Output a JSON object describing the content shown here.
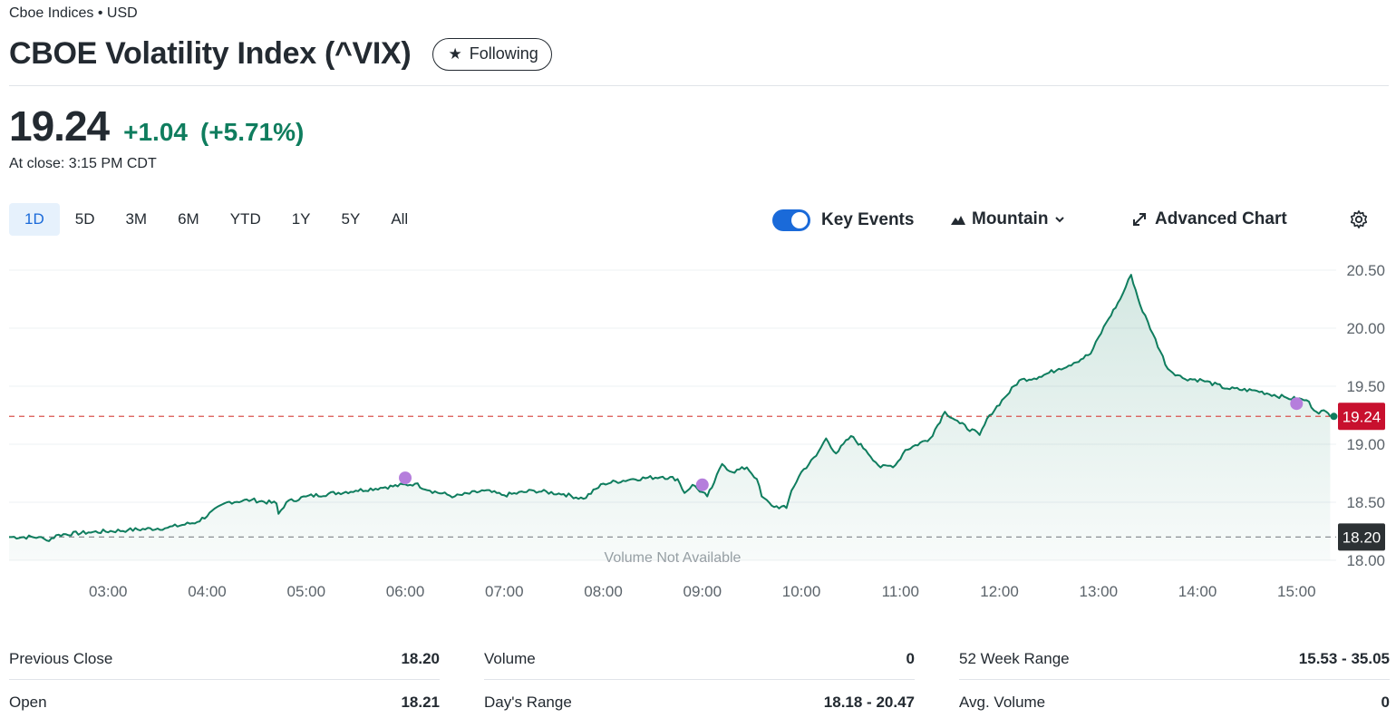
{
  "header": {
    "exchange": "Cboe Indices • USD",
    "title": "CBOE Volatility Index (^VIX)",
    "follow_label": "Following"
  },
  "quote": {
    "price": "19.24",
    "change": "+1.04",
    "change_pct": "(+5.71%)",
    "close_time": "At close: 3:15 PM CDT"
  },
  "ranges": [
    "1D",
    "5D",
    "3M",
    "6M",
    "YTD",
    "1Y",
    "5Y",
    "All"
  ],
  "active_range": "1D",
  "toolbar": {
    "key_events_label": "Key Events",
    "key_events_on": true,
    "chart_type_label": "Mountain",
    "advanced_label": "Advanced Chart"
  },
  "colors": {
    "up": "#0f7d5e",
    "line": "#0f7d5e",
    "accent": "#1a6ad9",
    "current_badge": "#c8102e",
    "prev_close_badge": "#2c3134",
    "event_dot": "#b57edc"
  },
  "chart_data": {
    "type": "area",
    "x_tick_labels": [
      "03:00",
      "04:00",
      "05:00",
      "06:00",
      "07:00",
      "08:00",
      "09:00",
      "10:00",
      "11:00",
      "12:00",
      "13:00",
      "14:00",
      "15:00"
    ],
    "y_tick_labels": [
      "20.50",
      "20.00",
      "19.50",
      "19.00",
      "18.50",
      "18.00"
    ],
    "ylim": [
      18.0,
      20.5
    ],
    "xlim_hours": [
      2.0,
      15.4
    ],
    "current_label": "19.24",
    "prev_close_label": "18.20",
    "current_value": 19.24,
    "prev_close_value": 18.2,
    "watermark": "Volume Not Available",
    "series": [
      {
        "points": [
          [
            2.0,
            18.2
          ],
          [
            2.3,
            18.2
          ],
          [
            2.38,
            18.17
          ],
          [
            2.5,
            18.22
          ],
          [
            2.8,
            18.24
          ],
          [
            3.2,
            18.26
          ],
          [
            3.6,
            18.28
          ],
          [
            3.9,
            18.33
          ],
          [
            4.2,
            18.5
          ],
          [
            4.45,
            18.52
          ],
          [
            4.7,
            18.49
          ],
          [
            4.72,
            18.4
          ],
          [
            4.8,
            18.5
          ],
          [
            5.0,
            18.55
          ],
          [
            5.5,
            18.6
          ],
          [
            5.8,
            18.63
          ],
          [
            6.1,
            18.66
          ],
          [
            6.25,
            18.6
          ],
          [
            6.5,
            18.55
          ],
          [
            6.8,
            18.6
          ],
          [
            7.0,
            18.56
          ],
          [
            7.3,
            18.6
          ],
          [
            7.6,
            18.57
          ],
          [
            7.8,
            18.53
          ],
          [
            8.0,
            18.66
          ],
          [
            8.3,
            18.7
          ],
          [
            8.6,
            18.72
          ],
          [
            8.75,
            18.7
          ],
          [
            8.82,
            18.58
          ],
          [
            8.9,
            18.65
          ],
          [
            9.05,
            18.55
          ],
          [
            9.12,
            18.67
          ],
          [
            9.2,
            18.83
          ],
          [
            9.3,
            18.76
          ],
          [
            9.45,
            18.8
          ],
          [
            9.55,
            18.7
          ],
          [
            9.6,
            18.55
          ],
          [
            9.7,
            18.47
          ],
          [
            9.85,
            18.45
          ],
          [
            9.9,
            18.6
          ],
          [
            10.0,
            18.76
          ],
          [
            10.15,
            18.9
          ],
          [
            10.25,
            19.05
          ],
          [
            10.35,
            18.92
          ],
          [
            10.5,
            19.07
          ],
          [
            10.65,
            18.95
          ],
          [
            10.8,
            18.8
          ],
          [
            10.95,
            18.82
          ],
          [
            11.05,
            18.95
          ],
          [
            11.3,
            19.05
          ],
          [
            11.45,
            19.28
          ],
          [
            11.6,
            19.18
          ],
          [
            11.8,
            19.08
          ],
          [
            11.9,
            19.25
          ],
          [
            12.05,
            19.4
          ],
          [
            12.2,
            19.55
          ],
          [
            12.4,
            19.58
          ],
          [
            12.6,
            19.65
          ],
          [
            12.75,
            19.7
          ],
          [
            12.92,
            19.78
          ],
          [
            13.08,
            20.05
          ],
          [
            13.22,
            20.25
          ],
          [
            13.33,
            20.46
          ],
          [
            13.42,
            20.2
          ],
          [
            13.55,
            19.95
          ],
          [
            13.7,
            19.65
          ],
          [
            13.85,
            19.57
          ],
          [
            14.05,
            19.55
          ],
          [
            14.3,
            19.48
          ],
          [
            14.6,
            19.46
          ],
          [
            14.9,
            19.4
          ],
          [
            15.1,
            19.38
          ],
          [
            15.2,
            19.28
          ],
          [
            15.3,
            19.28
          ],
          [
            15.34,
            19.24
          ]
        ]
      }
    ],
    "events": [
      [
        6.0,
        18.71
      ],
      [
        9.0,
        18.65
      ],
      [
        15.0,
        19.35
      ]
    ]
  },
  "stats": {
    "col1": [
      {
        "label": "Previous Close",
        "value": "18.20"
      },
      {
        "label": "Open",
        "value": "18.21"
      }
    ],
    "col2": [
      {
        "label": "Volume",
        "value": "0"
      },
      {
        "label": "Day's Range",
        "value": "18.18 - 20.47"
      }
    ],
    "col3": [
      {
        "label": "52 Week Range",
        "value": "15.53 - 35.05"
      },
      {
        "label": "Avg. Volume",
        "value": "0"
      }
    ]
  }
}
